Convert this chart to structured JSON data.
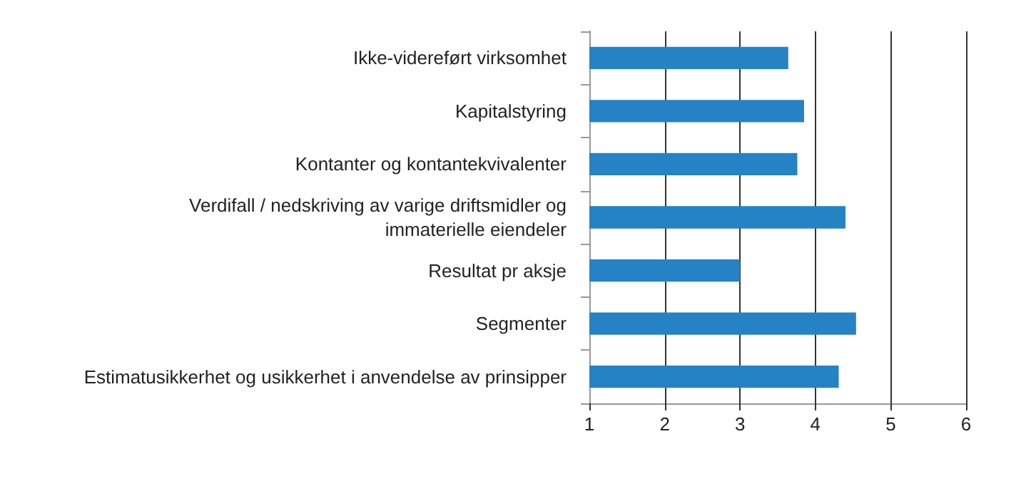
{
  "chart_data": {
    "type": "bar",
    "orientation": "horizontal",
    "categories": [
      "Ikke-videreført virksomhet",
      "Kapitalstyring",
      "Kontanter og kontantekvivalenter",
      "Verdifall / nedskriving av varige driftsmidler og\nimmaterielle eiendeler",
      "Resultat pr aksje",
      "Segmenter",
      "Estimatusikkerhet og usikkerhet i anvendelse av prinsipper"
    ],
    "values": [
      3.64,
      3.85,
      3.76,
      4.4,
      3.0,
      4.54,
      4.31
    ],
    "color": "#2582c5",
    "xlim": [
      1,
      6
    ],
    "xticks": [
      1,
      2,
      3,
      4,
      5,
      6
    ],
    "grid": "x"
  }
}
